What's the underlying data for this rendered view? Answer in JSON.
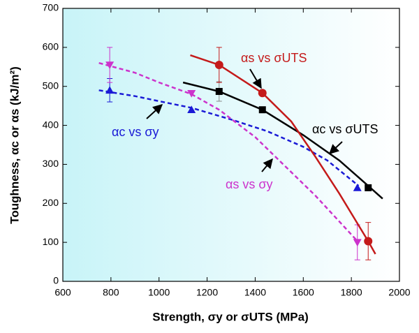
{
  "chart_data": {
    "type": "scatter",
    "xlabel": "Strength, σy or σUTS (MPa)",
    "ylabel": "Toughness, αc or αs (kJ/m²)",
    "xlim": [
      600,
      2000
    ],
    "xticks": [
      600,
      800,
      1000,
      1200,
      1400,
      1600,
      1800,
      2000
    ],
    "ylim": [
      0,
      700
    ],
    "yticks": [
      0,
      100,
      200,
      300,
      400,
      500,
      600,
      700
    ],
    "series": [
      {
        "name": "αc vs σy",
        "color": "#1a1ad6",
        "marker": "triangle-up",
        "line": "dashed",
        "x": [
          795,
          1135,
          1825
        ],
        "values": [
          490,
          440,
          240
        ],
        "errors": [
          30,
          null,
          null
        ],
        "fit": {
          "x": [
            750,
            900,
            1000,
            1135,
            1300,
            1450,
            1600,
            1700,
            1830
          ],
          "y": [
            490,
            475,
            462,
            445,
            415,
            385,
            345,
            310,
            245
          ]
        }
      },
      {
        "name": "αs vs σy",
        "color": "#cc33cc",
        "marker": "triangle-down",
        "line": "dashed",
        "x": [
          795,
          1135,
          1825
        ],
        "values": [
          555,
          482,
          100
        ],
        "errors": [
          45,
          null,
          45
        ],
        "fit": {
          "x": [
            750,
            900,
            1000,
            1135,
            1250,
            1400,
            1500,
            1650,
            1830
          ],
          "y": [
            560,
            535,
            510,
            480,
            440,
            370,
            310,
            220,
            100
          ]
        }
      },
      {
        "name": "αc vs σUTS",
        "color": "#000000",
        "marker": "square",
        "line": "solid",
        "x": [
          1250,
          1430,
          1870
        ],
        "values": [
          487,
          440,
          240
        ],
        "errors": [
          25,
          null,
          null
        ],
        "fit": {
          "x": [
            1100,
            1250,
            1430,
            1600,
            1750,
            1870,
            1930
          ],
          "y": [
            510,
            487,
            440,
            375,
            310,
            245,
            212
          ]
        }
      },
      {
        "name": "αs vs σUTS",
        "color": "#c41a1a",
        "marker": "circle",
        "line": "solid",
        "x": [
          1250,
          1430,
          1870
        ],
        "values": [
          555,
          483,
          103
        ],
        "errors": [
          45,
          null,
          48
        ],
        "fit": {
          "x": [
            1130,
            1250,
            1430,
            1550,
            1650,
            1750,
            1870,
            1900
          ],
          "y": [
            580,
            555,
            483,
            410,
            320,
            225,
            103,
            70
          ]
        }
      }
    ]
  }
}
